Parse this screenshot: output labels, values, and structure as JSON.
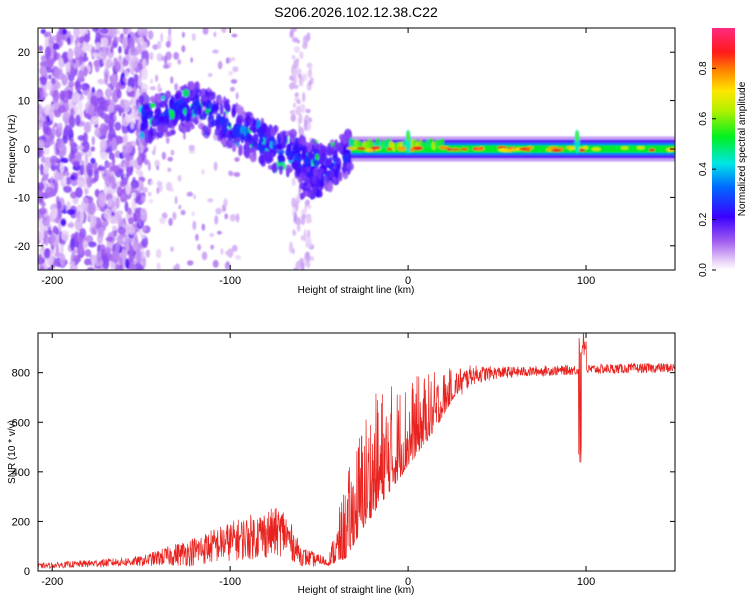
{
  "figure_title": "S206.2026.102.12.38.C22",
  "colors": {
    "snr_line": "#e8231f",
    "axis": "#000000",
    "background": "#ffffff"
  },
  "chart_data": [
    {
      "type": "heatmap",
      "title": "S206.2026.102.12.38.C22",
      "xlabel": "Height of straight line (km)",
      "ylabel": "Frequency (Hz)",
      "xlim": [
        -208,
        150
      ],
      "ylim": [
        -25,
        25
      ],
      "xticks": [
        -200,
        -100,
        0,
        100
      ],
      "yticks": [
        -20,
        -10,
        0,
        10,
        20
      ],
      "colorbar": {
        "label": "Normalized spectral amplitude",
        "range": [
          0,
          0.96
        ],
        "ticks": [
          0.0,
          0.2,
          0.4,
          0.6,
          0.8
        ],
        "colormap": "rainbow (purple-blue-cyan-green-yellow-red-magenta)"
      },
      "features": {
        "noise_region_km": [
          -208,
          -155
        ],
        "diagonal_trace": [
          {
            "km": -150,
            "hz": 6
          },
          {
            "km": -120,
            "hz": 9
          },
          {
            "km": -100,
            "hz": 5
          },
          {
            "km": -80,
            "hz": 1
          },
          {
            "km": -60,
            "hz": -2
          },
          {
            "km": -45,
            "hz": -4
          },
          {
            "km": -32,
            "hz": 0
          }
        ],
        "carrier_band_hz": 0,
        "carrier_start_km": -32,
        "carrier_end_km": 150,
        "spike_km": [
          0,
          95
        ]
      }
    },
    {
      "type": "line",
      "xlabel": "Height of straight line (km)",
      "ylabel": "SNR (10 * v/v)",
      "xlim": [
        -208,
        150
      ],
      "ylim": [
        0,
        960
      ],
      "xticks": [
        -200,
        -100,
        0,
        100
      ],
      "yticks": [
        0,
        200,
        400,
        600,
        800
      ],
      "series": [
        {
          "name": "SNR",
          "envelope": {
            "x": [
              -208,
              -150,
              -120,
              -100,
              -80,
              -70,
              -60,
              -45,
              -35,
              -25,
              -15,
              -5,
              5,
              15,
              25,
              35,
              50,
              70,
              90,
              110,
              150
            ],
            "y": [
              20,
              40,
              80,
              120,
              150,
              160,
              60,
              30,
              120,
              280,
              380,
              460,
              540,
              620,
              720,
              790,
              800,
              805,
              810,
              815,
              820
            ]
          },
          "noise_amplitude": {
            "x": [
              -208,
              -150,
              -120,
              -100,
              -80,
              -70,
              -60,
              -45,
              -35,
              -25,
              -15,
              -5,
              5,
              15,
              25,
              35,
              50,
              70,
              90,
              110,
              150
            ],
            "y": [
              10,
              20,
              60,
              80,
              100,
              100,
              40,
              20,
              200,
              300,
              300,
              250,
              200,
              150,
              80,
              40,
              25,
              20,
              20,
              20,
              20
            ]
          },
          "spike": {
            "x": 98,
            "max": 960,
            "min": 400
          }
        }
      ]
    }
  ]
}
